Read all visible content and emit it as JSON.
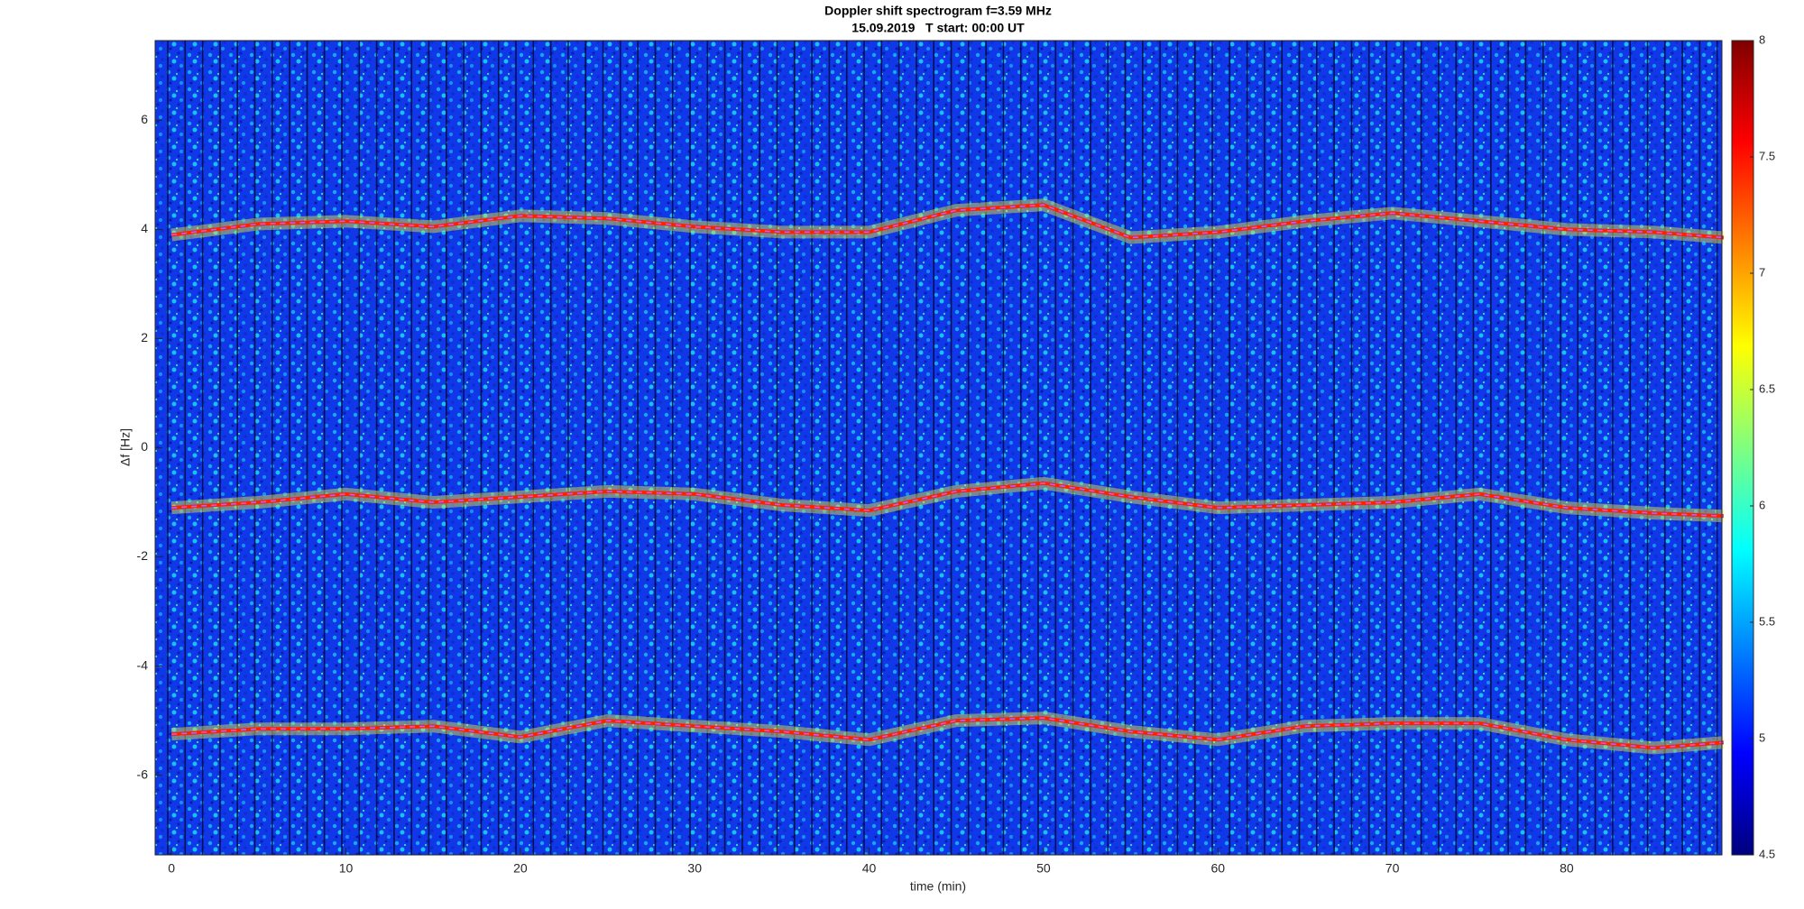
{
  "chart_data": {
    "type": "spectrogram",
    "title": "Doppler shift spectrogram f=3.59 MHz",
    "subtitle": "15.09.2019   T start: 00:00 UT",
    "x_label": "time (min)",
    "y_label": "Δf [Hz]",
    "x": [
      0,
      5,
      10,
      15,
      20,
      25,
      30,
      35,
      40,
      45,
      50,
      55,
      60,
      65,
      70,
      75,
      80,
      85,
      89
    ],
    "series": [
      {
        "color": "#ff2000",
        "values": [
          3.9,
          4.1,
          4.15,
          4.05,
          4.25,
          4.2,
          4.05,
          3.95,
          3.95,
          4.35,
          4.45,
          3.85,
          3.95,
          4.15,
          4.3,
          4.15,
          4.0,
          3.95,
          3.85
        ]
      },
      {
        "color": "#ff2000",
        "values": [
          -1.1,
          -1.0,
          -0.85,
          -1.0,
          -0.9,
          -0.8,
          -0.85,
          -1.05,
          -1.15,
          -0.8,
          -0.65,
          -0.9,
          -1.1,
          -1.05,
          -1.0,
          -0.85,
          -1.1,
          -1.2,
          -1.25
        ]
      },
      {
        "color": "#ff2000",
        "values": [
          -5.25,
          -5.15,
          -5.15,
          -5.1,
          -5.3,
          -5.0,
          -5.1,
          -5.2,
          -5.35,
          -5.0,
          -4.95,
          -5.2,
          -5.35,
          -5.1,
          -5.05,
          -5.05,
          -5.35,
          -5.5,
          -5.4
        ]
      }
    ],
    "xlim": [
      -0.94,
      88.9
    ],
    "xticks": [
      0,
      10,
      20,
      30,
      40,
      50,
      60,
      70,
      80
    ],
    "ylim": [
      -7.46,
      7.46
    ],
    "yticks": [
      -6,
      -4,
      -2,
      0,
      2,
      4,
      6
    ],
    "clim": [
      4.5,
      8
    ],
    "cticks": [
      4.5,
      5,
      5.5,
      6,
      6.5,
      7,
      7.5,
      8
    ]
  }
}
